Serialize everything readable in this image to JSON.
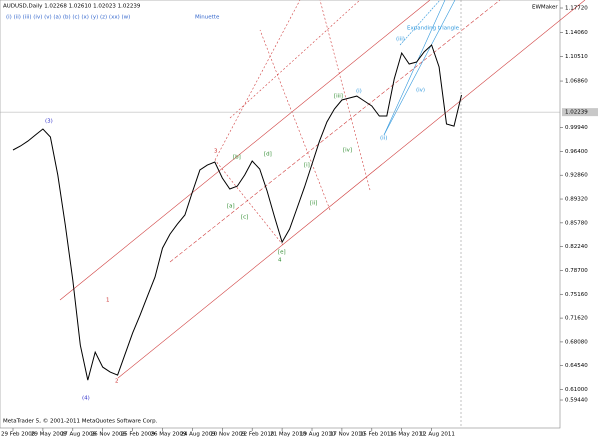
{
  "header": {
    "symbol": "AUDUSD,Daily  1.02268 1.02610 1.02023 1.02239",
    "wave_degree_labels": "(i)  (ii)  (iii)  (iv)  (v)  (a)  (b)  (c)  (x)  (y)  (z)  (xx)  (w)",
    "degree": "Minuette",
    "tool": "EWMaker"
  },
  "footer": "MetaTrader 5, © 2001-2011 MetaQuotes Software Corp.",
  "chart_data": {
    "type": "line",
    "color": "#000000",
    "categories": [
      "29 Feb 2008",
      null,
      null,
      null,
      "29 May 2008",
      null,
      null,
      null,
      "27 Aug 2008",
      null,
      null,
      null,
      "26 Nov 2008",
      null,
      null,
      null,
      "25 Feb 2009",
      null,
      null,
      null,
      "26 May 2009",
      null,
      null,
      null,
      "24 Aug 2009",
      null,
      null,
      null,
      "20 Nov 2009",
      null,
      null,
      null,
      "22 Feb 2010",
      null,
      null,
      null,
      "21 May 2010",
      null,
      null,
      null,
      "19 Aug 2010",
      null,
      null,
      null,
      "17 Nov 2010",
      null,
      null,
      null,
      "15 Feb 2011",
      null,
      null,
      null,
      "16 May 2011",
      null,
      null,
      null,
      "12 Aug 2011",
      null,
      null,
      null,
      null
    ],
    "values": [
      0.9661,
      0.972,
      0.9794,
      0.9884,
      0.9973,
      0.9854,
      0.9289,
      0.8545,
      0.7727,
      0.6761,
      0.624,
      0.6657,
      0.6434,
      0.6359,
      0.6315,
      0.6627,
      0.6939,
      0.7207,
      0.7489,
      0.7772,
      0.8203,
      0.8411,
      0.856,
      0.8694,
      0.9036,
      0.9363,
      0.9437,
      0.9482,
      0.9244,
      0.9081,
      0.9125,
      0.9289,
      0.9497,
      0.9378,
      0.9051,
      0.8664,
      0.8292,
      0.8486,
      0.8798,
      0.911,
      0.9452,
      0.9794,
      1.0077,
      1.027,
      1.0404,
      1.0434,
      1.0463,
      1.0389,
      1.0315,
      1.0166,
      1.0166,
      1.0716,
      1.1103,
      1.0939,
      1.0969,
      1.1118,
      1.1222,
      1.0895,
      1.0047,
      1.0017,
      1.0478
    ],
    "ylim": [
      0.5528,
      1.1891
    ],
    "yticks": [
      {
        "value": 1.1772,
        "label": "1.17720"
      },
      {
        "value": 1.1406,
        "label": "1.14060"
      },
      {
        "value": 1.1051,
        "label": "1.10510"
      },
      {
        "value": 1.0686,
        "label": "1.06860"
      },
      {
        "value": 0.9994,
        "label": "0.99940"
      },
      {
        "value": 0.964,
        "label": "0.96400"
      },
      {
        "value": 0.9286,
        "label": "0.92860"
      },
      {
        "value": 0.8932,
        "label": "0.89320"
      },
      {
        "value": 0.8578,
        "label": "0.85780"
      },
      {
        "value": 0.8224,
        "label": "0.82240"
      },
      {
        "value": 0.787,
        "label": "0.78700"
      },
      {
        "value": 0.7516,
        "label": "0.75160"
      },
      {
        "value": 0.7162,
        "label": "0.71620"
      },
      {
        "value": 0.6808,
        "label": "0.68080"
      },
      {
        "value": 0.6454,
        "label": "0.64540"
      },
      {
        "value": 0.61,
        "label": "0.61000"
      },
      {
        "value": 0.5944,
        "label": "0.59440"
      }
    ],
    "current_price": 1.02239,
    "grid": false,
    "annotations": [
      {
        "text": "(3)",
        "color": "#3333cc"
      },
      {
        "text": "(4)",
        "color": "#3333cc"
      },
      {
        "text": "1",
        "color": "#cc3333"
      },
      {
        "text": "2",
        "color": "#cc3333"
      },
      {
        "text": "3",
        "color": "#cc3333"
      },
      {
        "text": "4",
        "color": "#2e8b2e"
      },
      {
        "text": "[a]",
        "color": "#2e8b2e"
      },
      {
        "text": "[b]",
        "color": "#2e8b2e"
      },
      {
        "text": "[c]",
        "color": "#2e8b2e"
      },
      {
        "text": "[d]",
        "color": "#2e8b2e"
      },
      {
        "text": "[e]",
        "color": "#2e8b2e"
      },
      {
        "text": "[i]",
        "color": "#2e8b2e"
      },
      {
        "text": "[ii]",
        "color": "#2e8b2e"
      },
      {
        "text": "[iii]",
        "color": "#2e8b2e"
      },
      {
        "text": "[iv]",
        "color": "#2e8b2e"
      },
      {
        "text": "(i)",
        "color": "#3399dd"
      },
      {
        "text": "(ii)",
        "color": "#3399dd"
      },
      {
        "text": "(iii)",
        "color": "#3399dd"
      },
      {
        "text": "(iv)",
        "color": "#3399dd"
      },
      {
        "text": "Expanding triangle",
        "color": "#3399dd"
      }
    ]
  }
}
